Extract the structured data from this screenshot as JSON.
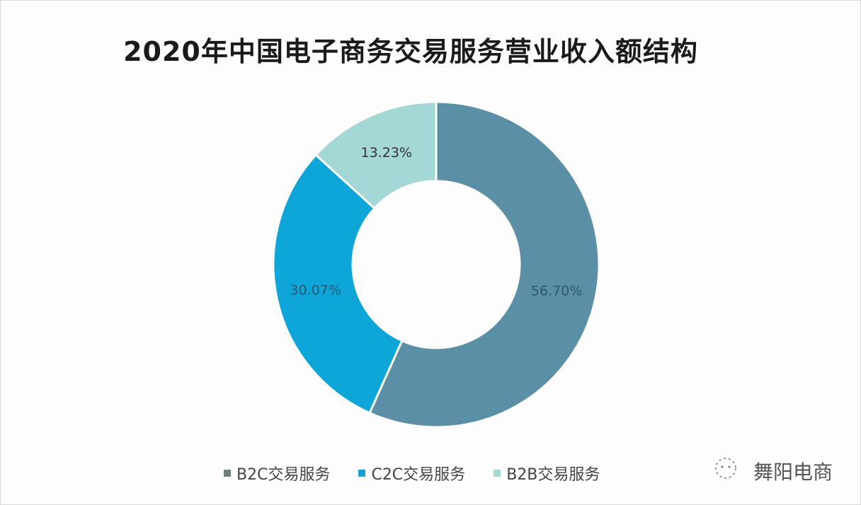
{
  "chart_data": {
    "type": "pie",
    "subtype": "donut",
    "title": "2020年中国电子商务交易服务营业收入额结构",
    "categories": [
      "B2C交易服务",
      "C2C交易服务",
      "B2B交易服务"
    ],
    "values": [
      56.7,
      30.07,
      13.23
    ],
    "labels": [
      "56.70%",
      "30.07%",
      "13.23%"
    ],
    "colors": [
      "#5b8fa5",
      "#0ea5d8",
      "#a3d8d6"
    ],
    "legend_position": "bottom"
  },
  "legend": [
    {
      "label": "B2C交易服务",
      "color": "#6b7f78"
    },
    {
      "label": "C2C交易服务",
      "color": "#1a9ed6"
    },
    {
      "label": "B2B交易服务",
      "color": "#a3d8d0"
    }
  ],
  "watermark": {
    "text": "舞阳电商"
  }
}
